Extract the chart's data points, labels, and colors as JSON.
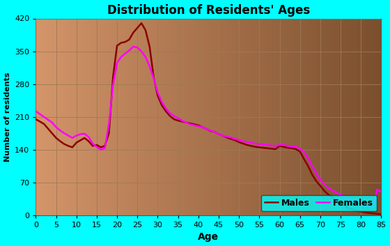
{
  "title": "Distribution of Residents' Ages",
  "xlabel": "Age",
  "ylabel": "Number of residents",
  "background_color": "#00FFFF",
  "plot_bg_left": "#D4956A",
  "plot_bg_right": "#7B4F2E",
  "grid_color": "#9E7A55",
  "ylim": [
    0,
    420
  ],
  "xlim": [
    0,
    85
  ],
  "yticks": [
    0,
    70,
    140,
    210,
    280,
    350,
    420
  ],
  "xticks": [
    0,
    5,
    10,
    15,
    20,
    25,
    30,
    35,
    40,
    45,
    50,
    55,
    60,
    65,
    70,
    75,
    80,
    85
  ],
  "males_color": "#8B0000",
  "females_color": "#FF00FF",
  "legend_bg": "#00FFFF",
  "ages": [
    0,
    1,
    2,
    3,
    4,
    5,
    6,
    7,
    8,
    9,
    10,
    11,
    12,
    13,
    14,
    15,
    16,
    17,
    18,
    19,
    20,
    21,
    22,
    23,
    24,
    25,
    26,
    27,
    28,
    29,
    30,
    31,
    32,
    33,
    34,
    35,
    36,
    37,
    38,
    39,
    40,
    41,
    42,
    43,
    44,
    45,
    46,
    47,
    48,
    49,
    50,
    51,
    52,
    53,
    54,
    55,
    56,
    57,
    58,
    59,
    60,
    61,
    62,
    63,
    64,
    65,
    66,
    67,
    68,
    69,
    70,
    71,
    72,
    73,
    74,
    75,
    76,
    77,
    78,
    79,
    80,
    81,
    82,
    83,
    84,
    85
  ],
  "males": [
    205,
    200,
    195,
    185,
    175,
    165,
    158,
    152,
    148,
    145,
    155,
    160,
    165,
    158,
    148,
    150,
    145,
    148,
    175,
    295,
    362,
    368,
    370,
    375,
    390,
    400,
    410,
    395,
    360,
    295,
    255,
    235,
    222,
    212,
    205,
    202,
    200,
    198,
    196,
    194,
    192,
    188,
    184,
    180,
    178,
    173,
    170,
    166,
    163,
    160,
    156,
    153,
    150,
    148,
    146,
    145,
    144,
    143,
    142,
    141,
    148,
    146,
    144,
    143,
    141,
    136,
    120,
    105,
    87,
    73,
    63,
    52,
    44,
    38,
    30,
    25,
    20,
    15,
    12,
    9,
    8,
    6,
    5,
    4,
    3,
    2
  ],
  "females": [
    222,
    216,
    210,
    204,
    198,
    188,
    181,
    175,
    170,
    165,
    170,
    173,
    174,
    167,
    153,
    146,
    140,
    143,
    195,
    278,
    325,
    338,
    345,
    352,
    360,
    358,
    350,
    338,
    318,
    292,
    262,
    242,
    228,
    218,
    212,
    207,
    202,
    198,
    194,
    192,
    190,
    188,
    184,
    181,
    178,
    173,
    170,
    168,
    166,
    163,
    161,
    158,
    156,
    155,
    153,
    152,
    151,
    150,
    149,
    148,
    150,
    150,
    148,
    147,
    146,
    142,
    135,
    122,
    105,
    90,
    76,
    66,
    58,
    53,
    48,
    44,
    40,
    36,
    32,
    28,
    26,
    23,
    20,
    18,
    55,
    50
  ]
}
